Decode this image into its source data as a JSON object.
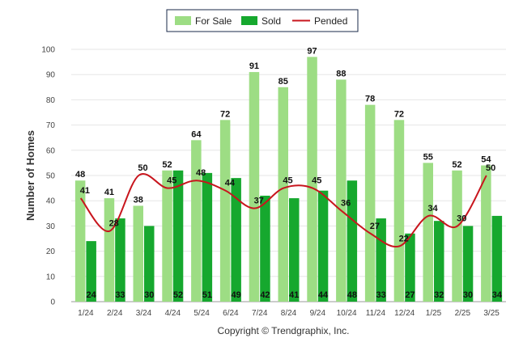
{
  "chart_data": {
    "type": "bar",
    "categories": [
      "1/24",
      "2/24",
      "3/24",
      "4/24",
      "5/24",
      "6/24",
      "7/24",
      "8/24",
      "9/24",
      "10/24",
      "11/24",
      "12/24",
      "1/25",
      "2/25",
      "3/25"
    ],
    "series": [
      {
        "name": "For Sale",
        "kind": "bar",
        "color": "#9ddd84",
        "values": [
          48,
          41,
          38,
          52,
          64,
          72,
          91,
          85,
          97,
          88,
          78,
          72,
          55,
          52,
          54
        ]
      },
      {
        "name": "Sold",
        "kind": "bar",
        "color": "#16a82e",
        "values": [
          24,
          33,
          30,
          52,
          51,
          49,
          42,
          41,
          44,
          48,
          33,
          27,
          32,
          30,
          34
        ]
      },
      {
        "name": "Pended",
        "kind": "line",
        "color": "#c8151d",
        "values": [
          41,
          28,
          50,
          45,
          48,
          44,
          37,
          45,
          45,
          36,
          27,
          22,
          34,
          30,
          50
        ]
      }
    ],
    "ylabel": "Number of Homes",
    "ylim": [
      0,
      100
    ],
    "yticks": [
      0,
      10,
      20,
      30,
      40,
      50,
      60,
      70,
      80,
      90,
      100
    ],
    "grid": true,
    "legend_position": "top-center"
  },
  "footer": {
    "copyright": "Copyright © Trendgraphix, Inc."
  }
}
